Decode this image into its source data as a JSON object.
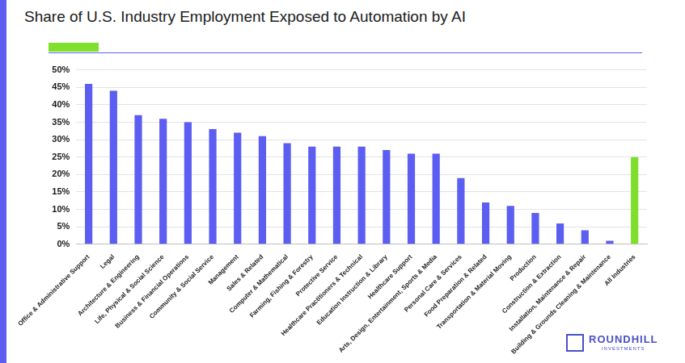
{
  "chart_data": {
    "type": "bar",
    "title": "Share of U.S. Industry Employment Exposed to Automation by AI",
    "categories": [
      "Office & Administrative Support",
      "Legal",
      "Architecture & Engineering",
      "Life, Physical & Social Science",
      "Business & Financial Operations",
      "Community & Social Service",
      "Management",
      "Sales & Related",
      "Computer & Mathematical",
      "Farming, Fishing & Forestry",
      "Protective Service",
      "Healthcare Practitioners & Technical",
      "Education Instruction & Library",
      "Healthcare Support",
      "Arts, Design, Entertainment, Sports & Media",
      "Personal Care & Services",
      "Food Preparation & Related",
      "Transportation & Material Moving",
      "Production",
      "Construction & Extraction",
      "Installation, Maintenance & Repair",
      "Building & Grounds Cleaning & Maintenance",
      "All Industries"
    ],
    "values": [
      46,
      44,
      37,
      36,
      35,
      33,
      32,
      31,
      29,
      28,
      28,
      28,
      27,
      26,
      26,
      19,
      12,
      11,
      9,
      6,
      4,
      1,
      25
    ],
    "colors": [
      "#5b5ef0",
      "#5b5ef0",
      "#5b5ef0",
      "#5b5ef0",
      "#5b5ef0",
      "#5b5ef0",
      "#5b5ef0",
      "#5b5ef0",
      "#5b5ef0",
      "#5b5ef0",
      "#5b5ef0",
      "#5b5ef0",
      "#5b5ef0",
      "#5b5ef0",
      "#5b5ef0",
      "#5b5ef0",
      "#5b5ef0",
      "#5b5ef0",
      "#5b5ef0",
      "#5b5ef0",
      "#5b5ef0",
      "#5b5ef0",
      "#7ee02a"
    ],
    "ylim": [
      0,
      50
    ],
    "yticks": [
      {
        "value": 0,
        "label": "0%"
      },
      {
        "value": 5,
        "label": "5%"
      },
      {
        "value": 10,
        "label": "10%"
      },
      {
        "value": 15,
        "label": "15%"
      },
      {
        "value": 20,
        "label": "20%"
      },
      {
        "value": 25,
        "label": "25%"
      },
      {
        "value": 30,
        "label": "30%"
      },
      {
        "value": 35,
        "label": "35%"
      },
      {
        "value": 40,
        "label": "40%"
      },
      {
        "value": 45,
        "label": "45%"
      },
      {
        "value": 50,
        "label": "50%"
      }
    ],
    "grid": true,
    "annotations": [
      "ROUNDHILL",
      "INVESTMENTS"
    ]
  }
}
